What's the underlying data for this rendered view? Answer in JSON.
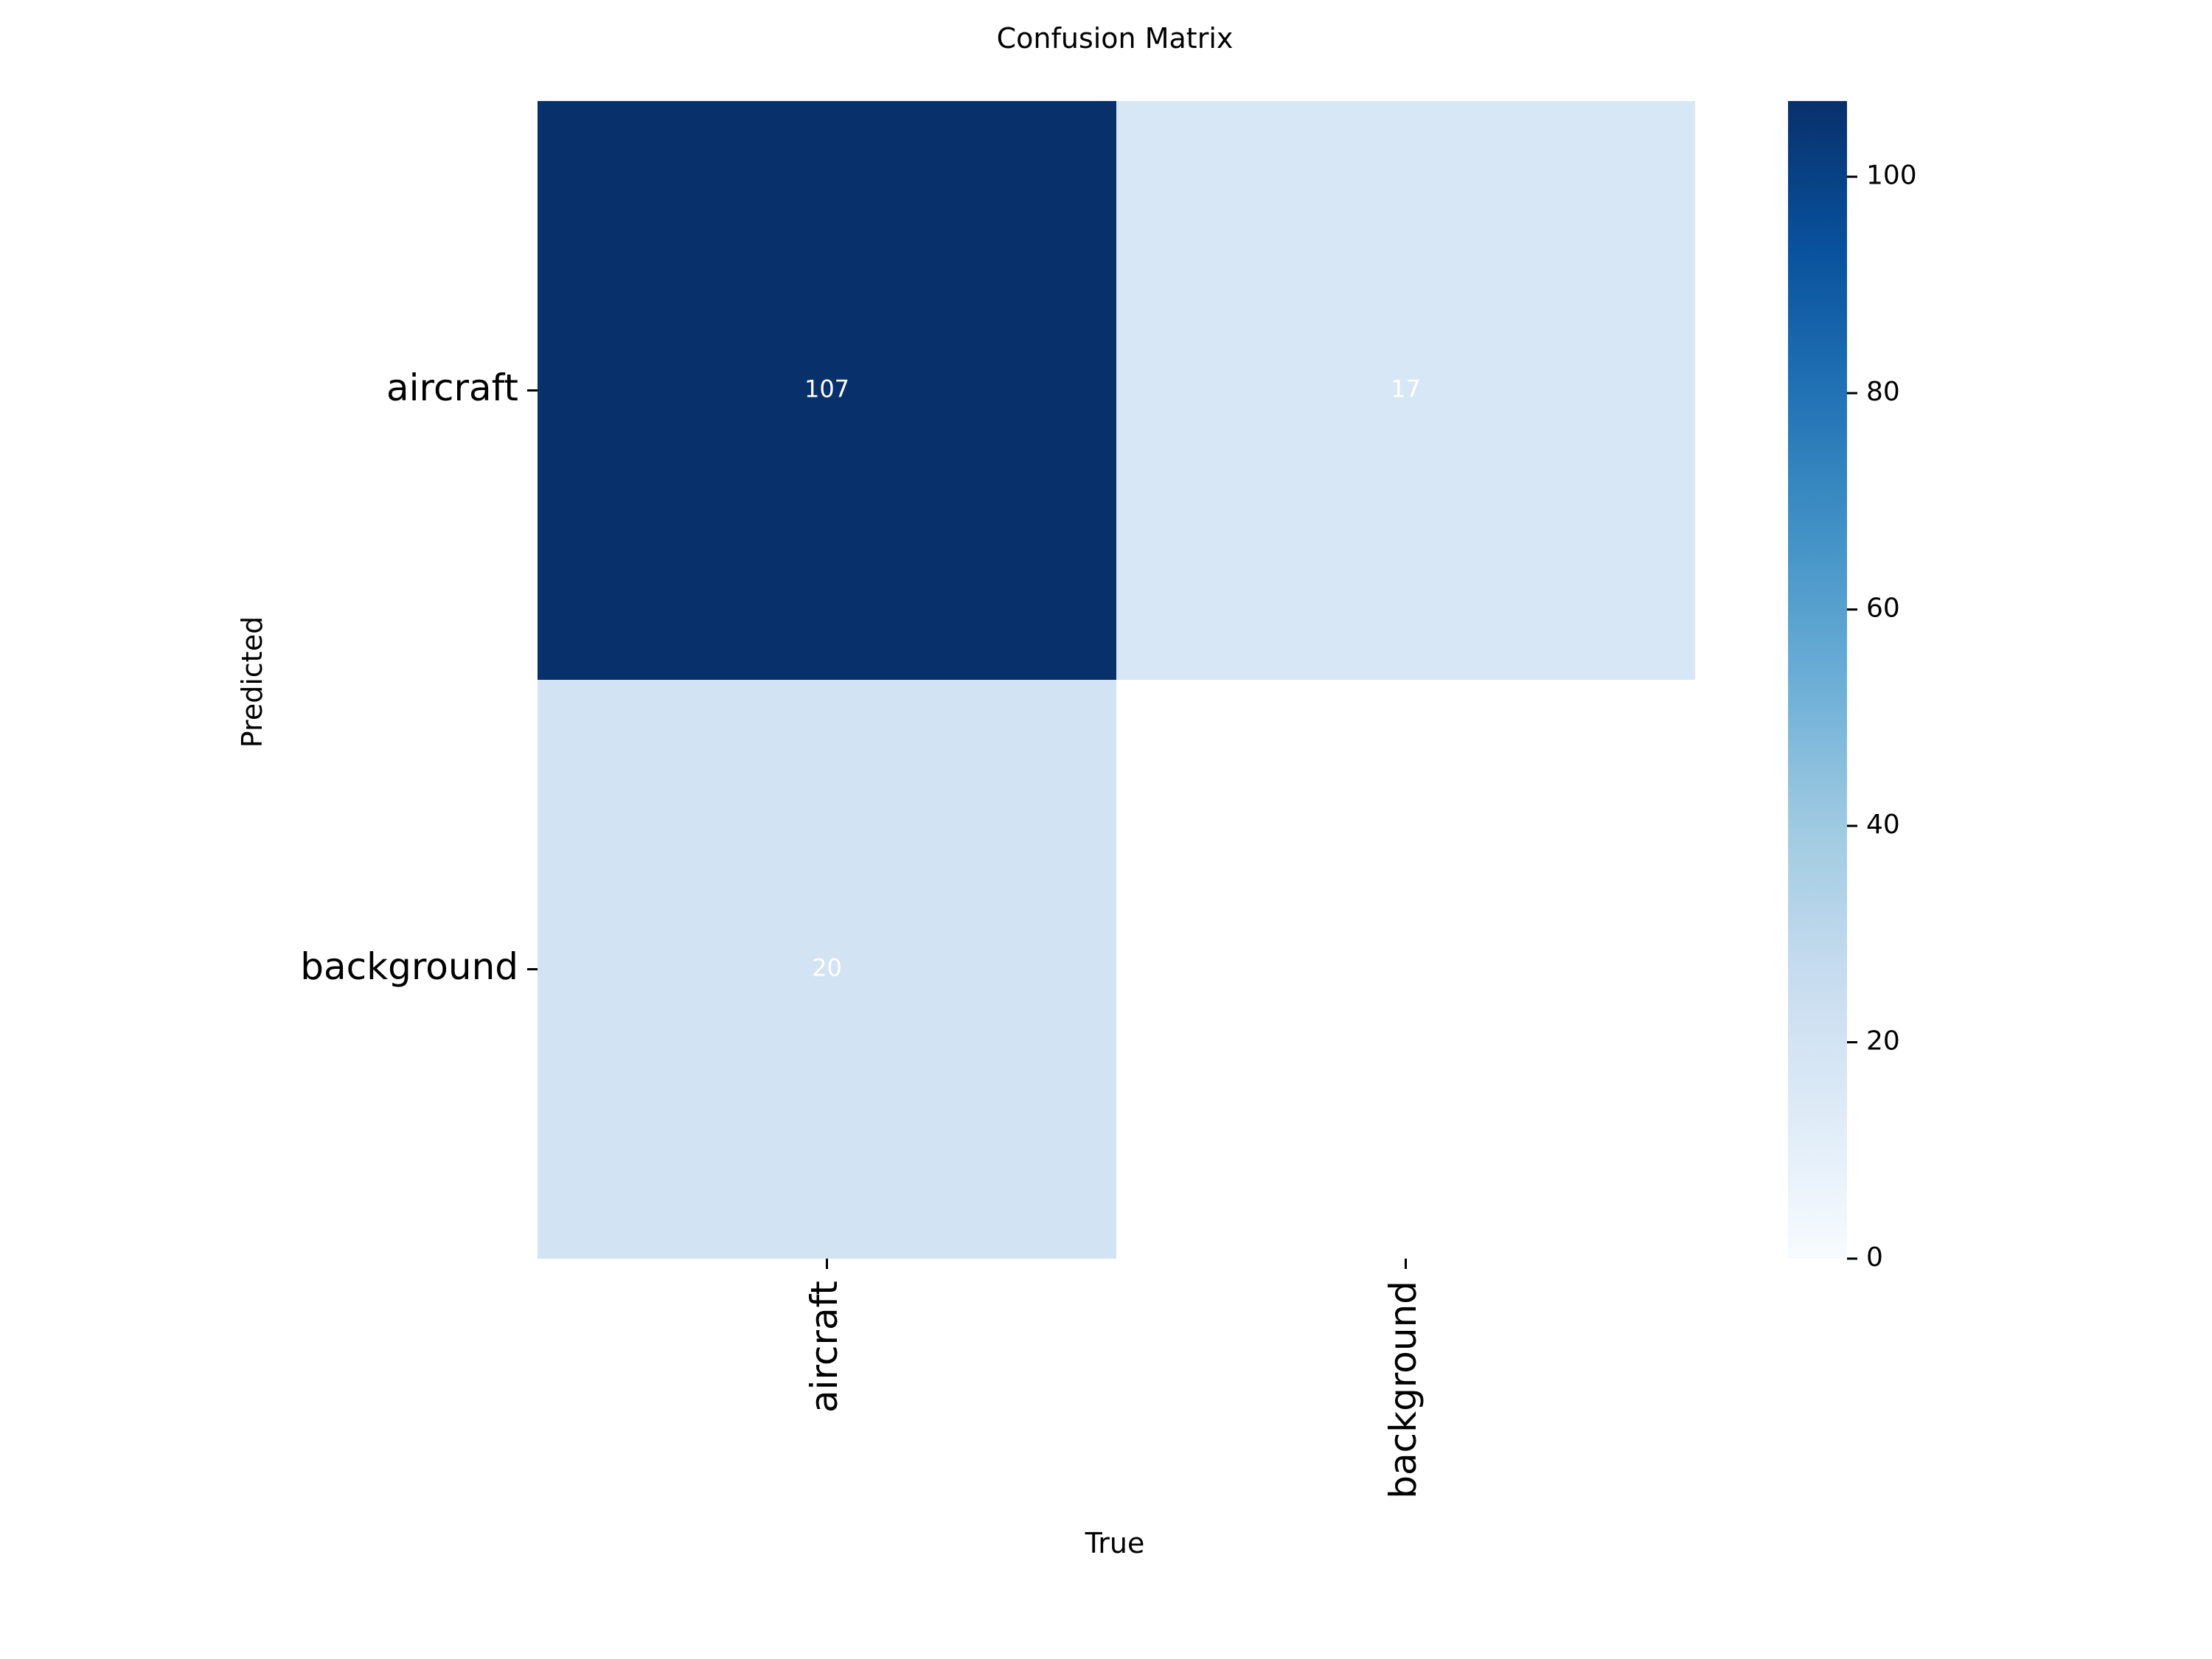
{
  "chart_data": {
    "type": "heatmap",
    "title": "Confusion Matrix",
    "xlabel": "True",
    "ylabel": "Predicted",
    "x_categories": [
      "aircraft",
      "background"
    ],
    "y_categories": [
      "aircraft",
      "background"
    ],
    "values": [
      [
        107,
        17
      ],
      [
        20,
        null
      ]
    ],
    "cell_labels": [
      [
        "107",
        "17"
      ],
      [
        "20",
        ""
      ]
    ],
    "colorbar": {
      "min": 0,
      "max": 107,
      "ticks": [
        0,
        20,
        40,
        60,
        80,
        100
      ]
    },
    "colormap": "Blues",
    "colors": {
      "low": "#f7fbff",
      "high": "#08306b"
    }
  }
}
